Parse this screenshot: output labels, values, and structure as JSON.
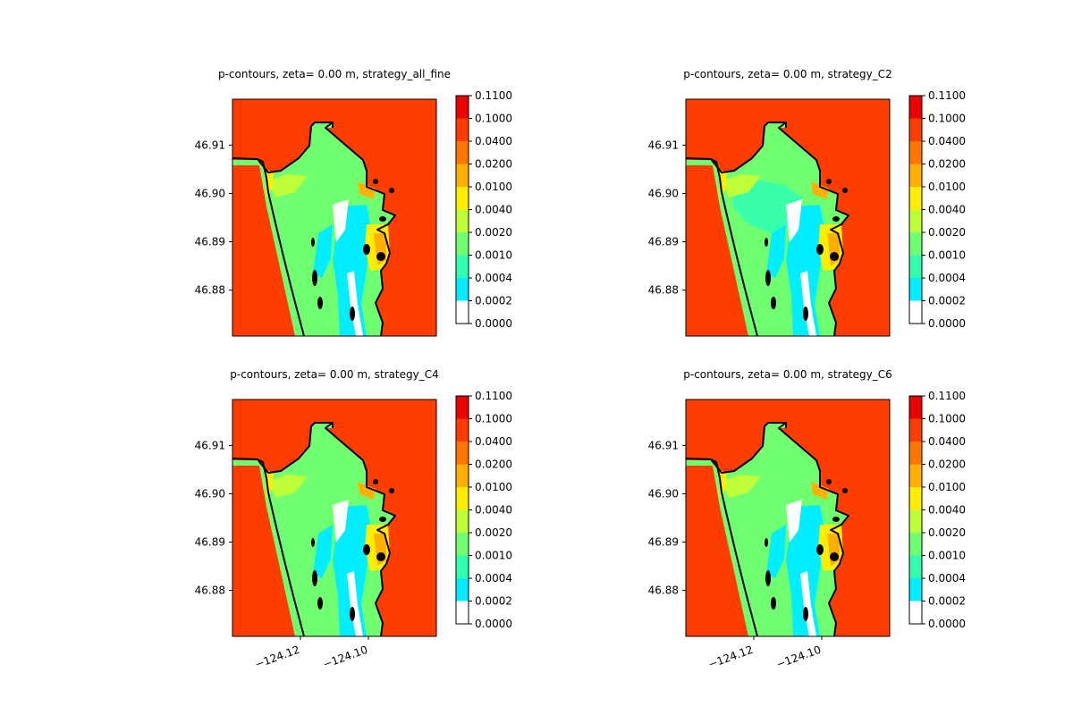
{
  "chart_data": {
    "type": "contour-map-grid",
    "yticks": [
      "46.91",
      "46.90",
      "46.89",
      "46.88"
    ],
    "ytick_values": [
      46.91,
      46.9,
      46.89,
      46.88
    ],
    "xticks": [
      "−124.12",
      "−124.10"
    ],
    "xtick_values": [
      -124.12,
      -124.1
    ],
    "xlim": [
      -124.14,
      -124.08
    ],
    "ylim": [
      46.8705,
      46.9195
    ],
    "colorbar": {
      "levels": [
        "0.1100",
        "0.1000",
        "0.0400",
        "0.0200",
        "0.0100",
        "0.0040",
        "0.0020",
        "0.0010",
        "0.0004",
        "0.0002",
        "0.0000"
      ],
      "colors_top_to_bottom": [
        "#ee0000",
        "#ff3d00",
        "#ff7700",
        "#ffb000",
        "#ffee00",
        "#bfff3a",
        "#70ff70",
        "#33ffb0",
        "#00eeff",
        "#ffffff"
      ]
    },
    "background_color": "#ff3d00",
    "panels": [
      {
        "title": "p-contours, zeta= 0.00 m, strategy_all_fine",
        "show_xticks": false
      },
      {
        "title": "p-contours, zeta= 0.00 m, strategy_C2",
        "show_xticks": false
      },
      {
        "title": "p-contours, zeta= 0.00 m, strategy_C4",
        "show_xticks": true
      },
      {
        "title": "p-contours, zeta= 0.00 m, strategy_C6",
        "show_xticks": true
      }
    ]
  }
}
